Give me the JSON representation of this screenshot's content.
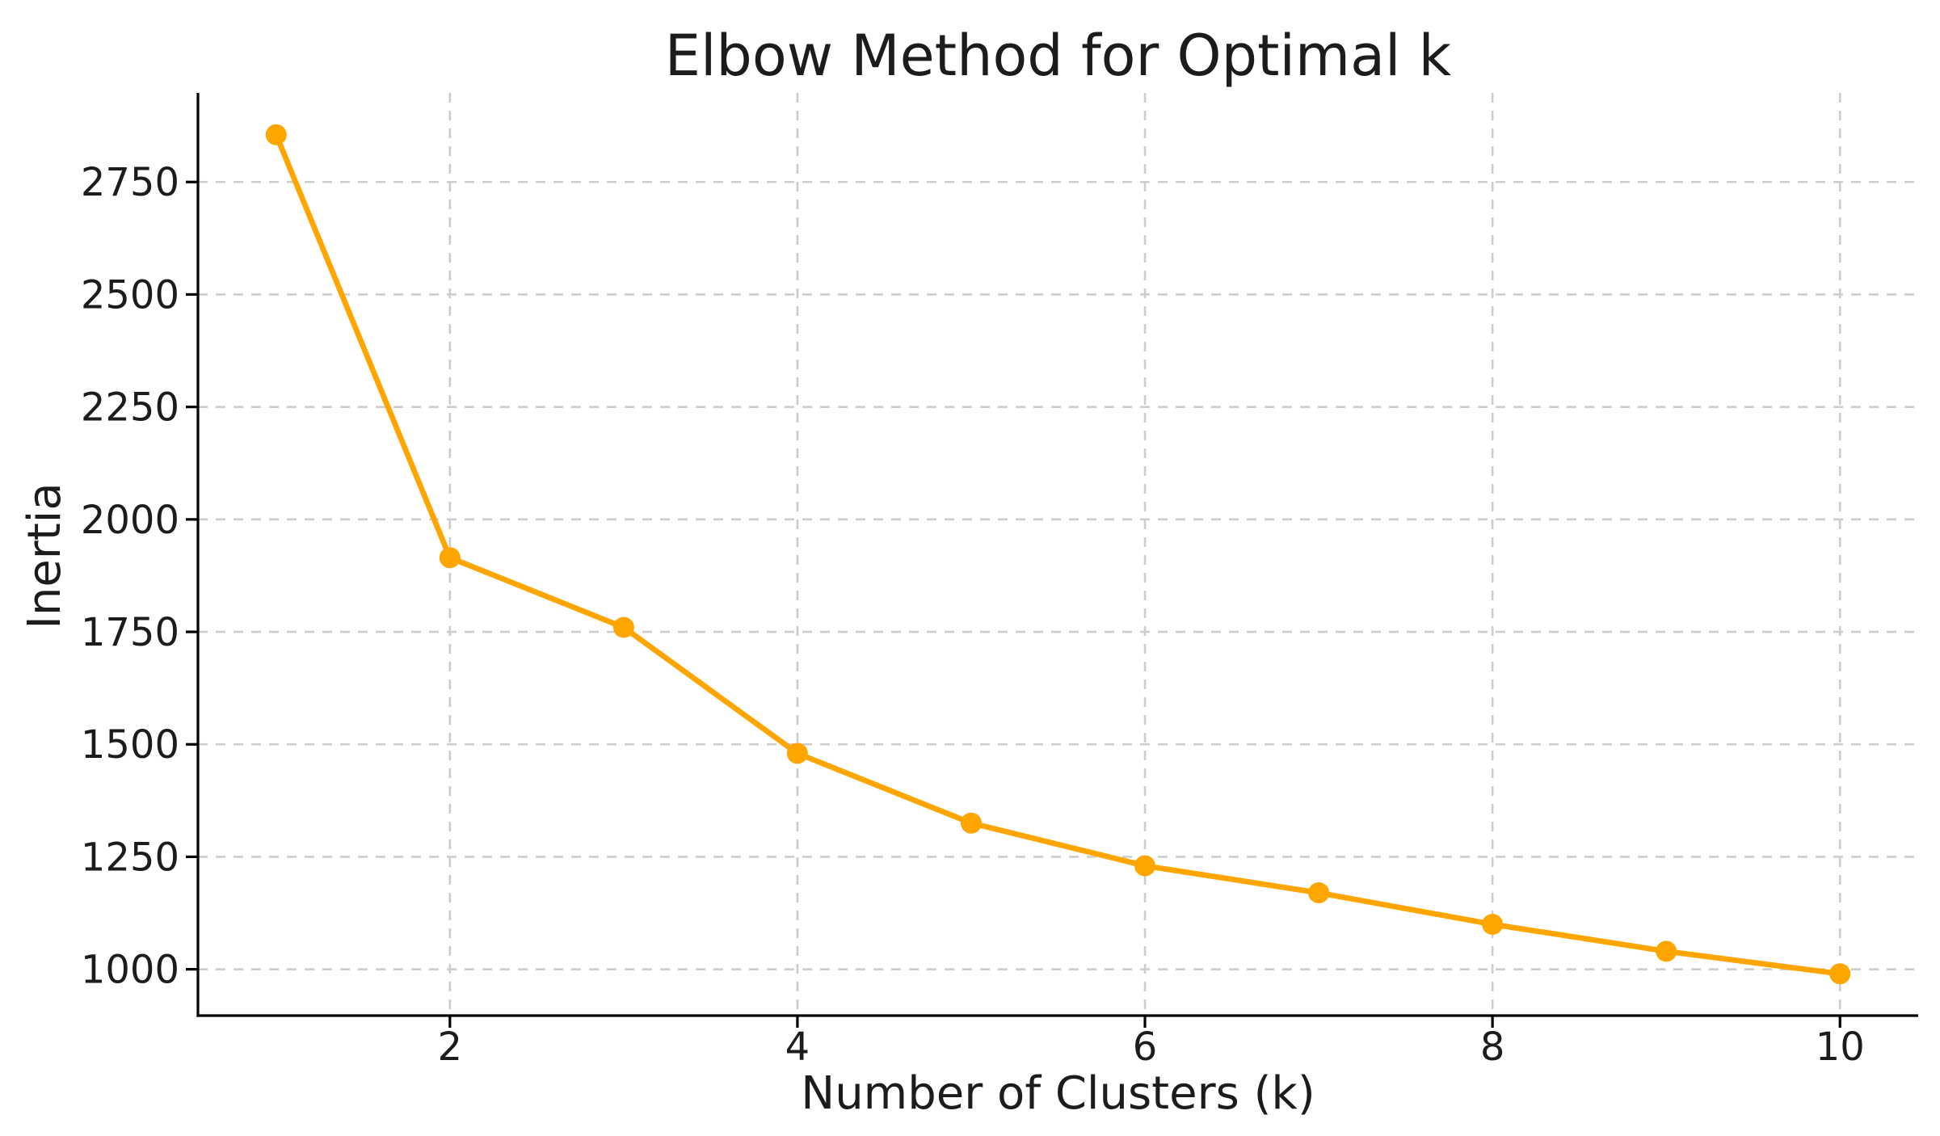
{
  "chart_data": {
    "type": "line",
    "title": "Elbow Method for Optimal k",
    "xlabel": "Number of Clusters (k)",
    "ylabel": "Inertia",
    "x": [
      1,
      2,
      3,
      4,
      5,
      6,
      7,
      8,
      9,
      10
    ],
    "series": [
      {
        "name": "Inertia",
        "values": [
          2855,
          1915,
          1760,
          1480,
          1325,
          1230,
          1170,
          1100,
          1040,
          990
        ],
        "color": "#FFA500",
        "marker": "circle",
        "line_style": "solid"
      }
    ],
    "xlim": [
      0.55,
      10.45
    ],
    "ylim": [
      897,
      2948
    ],
    "x_ticks": [
      2,
      4,
      6,
      8,
      10
    ],
    "y_ticks": [
      1000,
      1250,
      1500,
      1750,
      2000,
      2250,
      2500,
      2750
    ],
    "grid": true,
    "grid_style": "dashed",
    "legend": "none"
  },
  "style": {
    "background": "#ffffff",
    "grid_color": "#cdcdcd",
    "axis_color": "#000000",
    "tick_color": "#000000",
    "text_color": "#1c1c1c"
  }
}
